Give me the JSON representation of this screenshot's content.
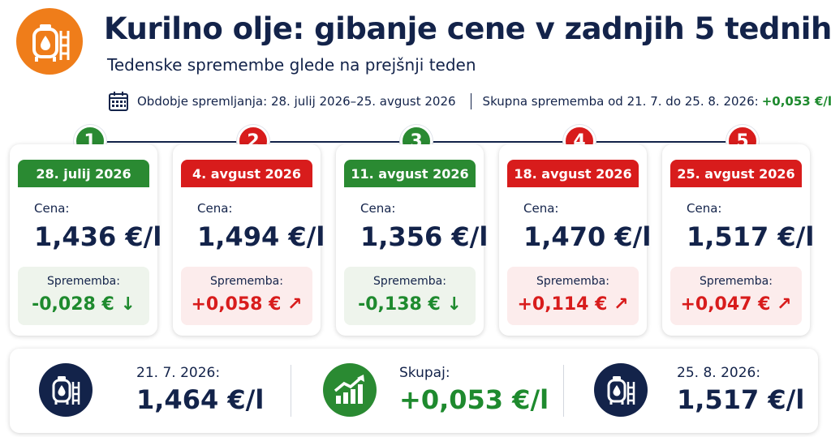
{
  "header": {
    "title": "Kurilno olje: gibanje cene v zadnjih 5 tednih",
    "subtitle": "Tedenske spremembe glede na prejšnji teden",
    "period_label": "Obdobje spremljanja: 28. julij 2026–25. avgust 2026",
    "total_label": "Skupna sprememba od 21. 7. do 25. 8. 2026:",
    "total_value": "+0,053 €/l"
  },
  "weeks": [
    {
      "number": "1",
      "date": "28. julij 2026",
      "price_label": "Cena:",
      "price": "1,436 €/l",
      "change_label": "Sprememba:",
      "change": "-0,028 € ↓",
      "direction": "down",
      "color": "#2a8a32"
    },
    {
      "number": "2",
      "date": "4. avgust 2026",
      "price_label": "Cena:",
      "price": "1,494 €/l",
      "change_label": "Sprememba:",
      "change": "+0,058 € ↗",
      "direction": "up",
      "color": "#d81c1c"
    },
    {
      "number": "3",
      "date": "11. avgust 2026",
      "price_label": "Cena:",
      "price": "1,356 €/l",
      "change_label": "Sprememba:",
      "change": "-0,138 € ↓",
      "direction": "down",
      "color": "#2a8a32"
    },
    {
      "number": "4",
      "date": "18. avgust 2026",
      "price_label": "Cena:",
      "price": "1,470 €/l",
      "change_label": "Sprememba:",
      "change": "+0,114 € ↗",
      "direction": "up",
      "color": "#d81c1c"
    },
    {
      "number": "5",
      "date": "25. avgust 2026",
      "price_label": "Cena:",
      "price": "1,517 €/l",
      "change_label": "Sprememba:",
      "change": "+0,047 € ↗",
      "direction": "up",
      "color": "#d81c1c"
    }
  ],
  "summary": {
    "start_label": "21. 7. 2026:",
    "start_value": "1,464 €/l",
    "total_label": "Skupaj:",
    "total_value": "+0,053 €/l",
    "end_label": "25. 8. 2026:",
    "end_value": "1,517 €/l"
  },
  "icons": {
    "logo": "fuel-tank-icon",
    "calendar": "calendar-icon",
    "start": "fuel-tank-icon",
    "total": "trend-up-chart-icon",
    "end": "fuel-tank-icon"
  },
  "colors": {
    "navy": "#13234a",
    "green": "#2a8a32",
    "red": "#d81c1c",
    "orange": "#ef7d1a"
  }
}
